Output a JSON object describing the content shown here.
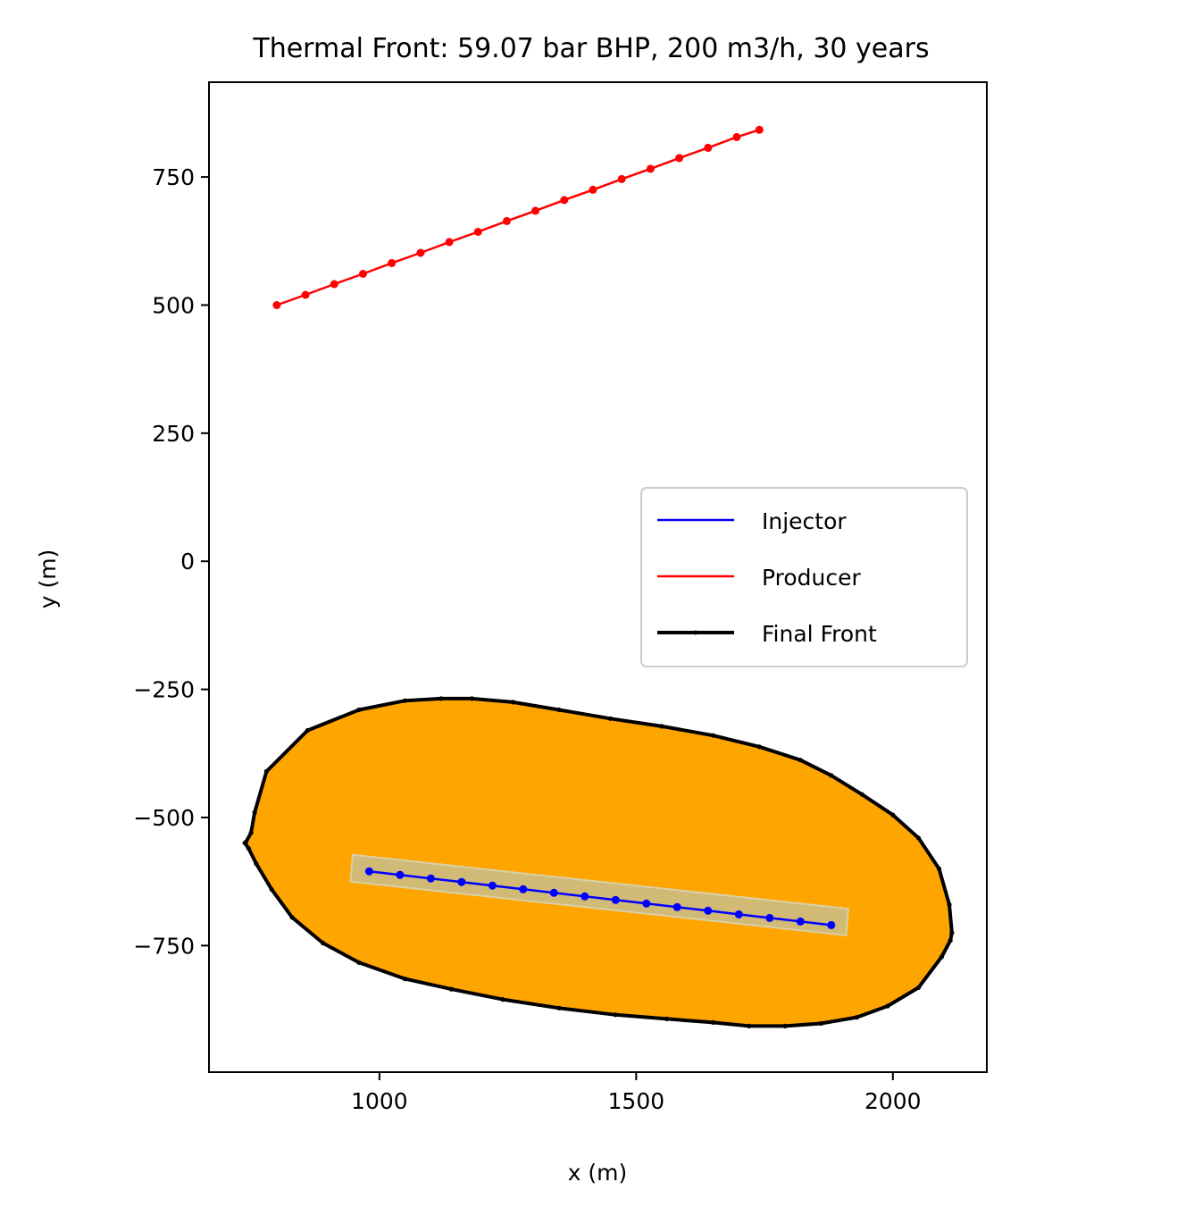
{
  "chart_data": {
    "type": "line",
    "title": "Thermal Front: 59.07 bar BHP, 200 m3/h, 30 years",
    "xlabel": "x (m)",
    "ylabel": "y (m)",
    "xlim": [
      668,
      2183
    ],
    "ylim": [
      -997,
      935
    ],
    "x_ticks": [
      1000,
      1500,
      2000
    ],
    "x_tick_labels": [
      "1000",
      "1500",
      "2000"
    ],
    "y_ticks": [
      -750,
      -500,
      -250,
      0,
      250,
      500,
      750
    ],
    "y_tick_labels": [
      "−750",
      "−500",
      "−250",
      "0",
      "250",
      "500",
      "750"
    ],
    "grid": false,
    "legend_position": "center-right",
    "legend": [
      "Injector",
      "Producer",
      "Final Front"
    ],
    "colors": {
      "injector": "#0000ff",
      "producer": "#ff0000",
      "front": "#000000",
      "front_fill": "#ffa500",
      "well_band": "#c9bc8b"
    },
    "series": [
      {
        "name": "Injector",
        "x": [
          980,
          1040,
          1100,
          1160,
          1220,
          1280,
          1340,
          1400,
          1460,
          1520,
          1580,
          1640,
          1700,
          1760,
          1820,
          1880
        ],
        "y": [
          -605,
          -612,
          -619,
          -626,
          -633,
          -640,
          -647,
          -654,
          -661,
          -668,
          -675,
          -682,
          -689,
          -696,
          -703,
          -710
        ]
      },
      {
        "name": "Producer",
        "x": [
          800,
          856,
          912,
          968,
          1024,
          1080,
          1136,
          1192,
          1248,
          1304,
          1360,
          1416,
          1472,
          1528,
          1584,
          1640,
          1696,
          1740
        ],
        "y": [
          500,
          520,
          541,
          561,
          582,
          602,
          623,
          643,
          664,
          684,
          705,
          725,
          746,
          766,
          787,
          807,
          828,
          842
        ]
      },
      {
        "name": "Final Front",
        "x": [
          740,
          750,
          757,
          780,
          860,
          960,
          1050,
          1120,
          1180,
          1260,
          1350,
          1450,
          1550,
          1650,
          1740,
          1820,
          1880,
          1940,
          2000,
          2050,
          2090,
          2110,
          2115,
          2112,
          2095,
          2050,
          1990,
          1930,
          1860,
          1790,
          1720,
          1650,
          1560,
          1460,
          1350,
          1240,
          1140,
          1050,
          960,
          890,
          830,
          790,
          760,
          745,
          738
        ],
        "y": [
          -548,
          -530,
          -490,
          -410,
          -330,
          -290,
          -272,
          -268,
          -268,
          -275,
          -290,
          -307,
          -322,
          -340,
          -362,
          -388,
          -418,
          -455,
          -495,
          -540,
          -600,
          -670,
          -725,
          -740,
          -772,
          -832,
          -868,
          -890,
          -902,
          -907,
          -907,
          -900,
          -893,
          -885,
          -872,
          -855,
          -835,
          -815,
          -783,
          -745,
          -695,
          -640,
          -590,
          -560,
          -550
        ]
      }
    ],
    "well_band": {
      "corners_x": [
        948,
        1913,
        1909,
        944
      ],
      "corners_y": [
        -573,
        -678,
        -730,
        -625
      ]
    }
  }
}
